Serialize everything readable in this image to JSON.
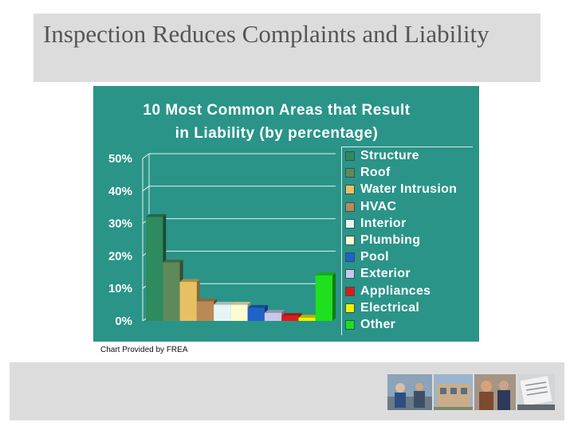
{
  "slide": {
    "title": "Inspection Reduces Complaints and Liability",
    "credit": "Chart Provided by FREA"
  },
  "chart_data": {
    "type": "bar",
    "title_lines": [
      "10 Most Common Areas that Result",
      "in Liability (by percentage)"
    ],
    "categories": [
      "Structure",
      "Roof",
      "Water Intrusion",
      "HVAC",
      "Interior",
      "Plumbing",
      "Pool",
      "Exterior",
      "Appliances",
      "Electrical",
      "Other"
    ],
    "values": [
      32,
      18,
      12,
      6,
      5,
      5,
      4,
      2.5,
      1.5,
      1,
      14
    ],
    "colors": [
      "#2f8a5f",
      "#5e8a5a",
      "#e8c063",
      "#b98a55",
      "#e6f5f4",
      "#fdfbd0",
      "#1f63c8",
      "#c6c8ec",
      "#dd1a1a",
      "#f0f000",
      "#1ee01e"
    ],
    "y_ticks": [
      "0%",
      "10%",
      "20%",
      "30%",
      "40%",
      "50%"
    ],
    "ylim": [
      0,
      50
    ],
    "ylabel": "",
    "xlabel": "",
    "legend_position": "right",
    "grid": true
  },
  "footer": {
    "photos": [
      "worker-photo",
      "building-photo",
      "inspectors-photo",
      "document-photo"
    ]
  }
}
